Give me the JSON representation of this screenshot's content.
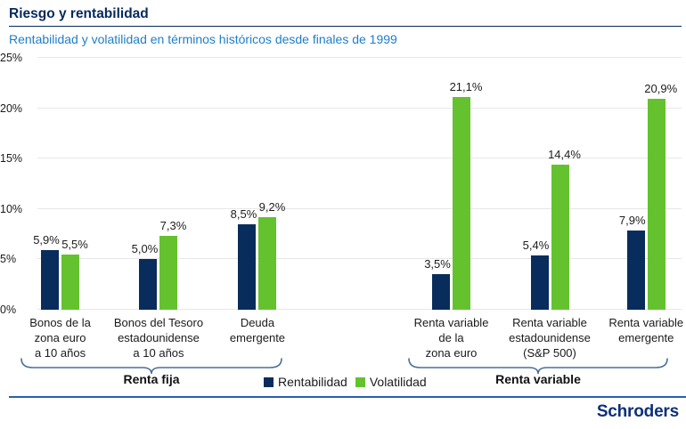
{
  "header": {
    "title": "Riesgo y rentabilidad",
    "subtitle": "Rentabilidad y volatilidad en términos históricos desde finales de 1999"
  },
  "chart_data": {
    "type": "bar",
    "title": "Riesgo y rentabilidad",
    "subtitle": "Rentabilidad y volatilidad en términos históricos desde finales de 1999",
    "categories": [
      "Bonos de la\nzona euro\na 10 años",
      "Bonos del Tesoro\nestadounidense\na 10 años",
      "Deuda\nemergente",
      "Renta variable\nde la\nzona euro",
      "Renta variable\nestadounidense\n(S&P 500)",
      "Renta variable\nemergente"
    ],
    "series": [
      {
        "name": "Rentabilidad",
        "color": "#082d5c",
        "values": [
          5.9,
          5.0,
          8.5,
          3.5,
          5.4,
          7.9
        ],
        "labels": [
          "5,9%",
          "5,0%",
          "8,5%",
          "3,5%",
          "5,4%",
          "7,9%"
        ]
      },
      {
        "name": "Volatilidad",
        "color": "#64c22e",
        "values": [
          5.5,
          7.3,
          9.2,
          21.1,
          14.4,
          20.9
        ],
        "labels": [
          "5,5%",
          "7,3%",
          "9,2%",
          "21,1%",
          "14,4%",
          "20,9%"
        ]
      }
    ],
    "ylim": [
      0,
      25
    ],
    "ytick_values": [
      0,
      5,
      10,
      15,
      20,
      25
    ],
    "ytick_labels": [
      "0%",
      "5%",
      "10%",
      "15%",
      "20%",
      "25%"
    ],
    "grid": true,
    "legend_position": "bottom-center",
    "groups": [
      {
        "label": "Renta fija",
        "from": 0,
        "to": 2
      },
      {
        "label": "Renta variable",
        "from": 3,
        "to": 5
      }
    ]
  },
  "footer": {
    "brand": "Schroders"
  }
}
